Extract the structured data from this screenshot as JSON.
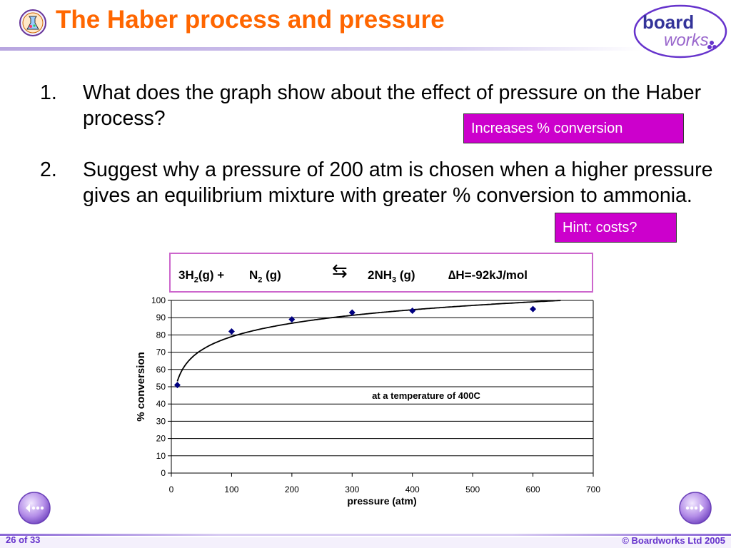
{
  "header": {
    "title": "The Haber process and pressure",
    "logo_line1": "board",
    "logo_line2": "works"
  },
  "questions": [
    {
      "number": "1.",
      "text": "What does the graph show about the effect of pressure on the Haber process?"
    },
    {
      "number": "2.",
      "text": "Suggest why a pressure of 200 atm is chosen when a higher pressure gives an equilibrium mixture with greater % conversion to ammonia."
    }
  ],
  "answers": {
    "answer1": "Increases % conversion",
    "answer2": "Hint: costs?"
  },
  "equation": {
    "h2": "3H",
    "h2_sub": "2",
    "h2_state": "(g) +",
    "n2": "N",
    "n2_sub": "2",
    "n2_state": "(g)",
    "arrow": "⇆",
    "nh3": "2NH",
    "nh3_sub": "3",
    "nh3_state": "(g)",
    "enthalpy": "∆H=-92kJ/mol"
  },
  "chart_data": {
    "type": "scatter",
    "xlabel": "pressure (atm)",
    "ylabel": "% conversion",
    "annotation": "at a temperature of 400C",
    "xlim": [
      0,
      700
    ],
    "ylim": [
      0,
      100
    ],
    "xticks": [
      0,
      100,
      200,
      300,
      400,
      500,
      600,
      700
    ],
    "yticks": [
      0,
      10,
      20,
      30,
      40,
      50,
      60,
      70,
      80,
      90,
      100
    ],
    "grid": true,
    "series": [
      {
        "points": [
          {
            "x": 10,
            "y": 51
          },
          {
            "x": 100,
            "y": 82
          },
          {
            "x": 200,
            "y": 89
          },
          {
            "x": 300,
            "y": 93
          },
          {
            "x": 400,
            "y": 94
          },
          {
            "x": 600,
            "y": 95
          }
        ]
      }
    ],
    "trendline": "logarithmic",
    "colors": {
      "marker": "#000080",
      "line": "#000000",
      "grid": "#000000"
    }
  },
  "footer": {
    "page": "26 of 33",
    "copyright": "© Boardworks Ltd 2005"
  },
  "navigation": {
    "prev_icon": "previous-arrow-icon",
    "next_icon": "next-arrow-icon"
  },
  "colors": {
    "title": "#ff6600",
    "answer_bg": "#cc00cc",
    "accent": "#6633cc"
  }
}
